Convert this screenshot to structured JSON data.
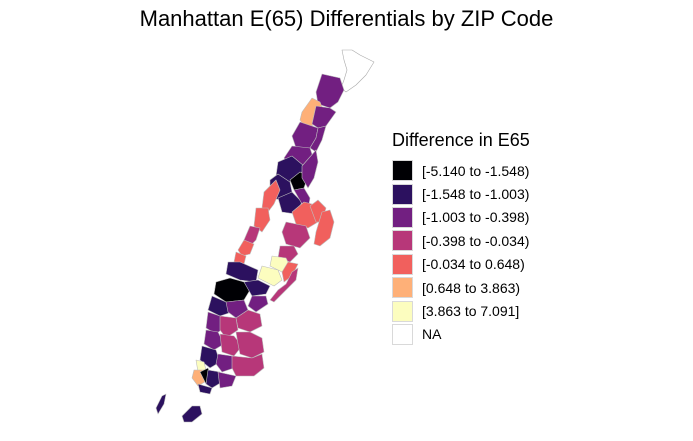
{
  "title": "Manhattan E(65) Differentials by ZIP Code",
  "legend": {
    "title": "Difference in E65",
    "placement": "right",
    "items": [
      {
        "label": "[-5.140 to -1.548)",
        "color": "#000004"
      },
      {
        "label": "[-1.548 to -1.003)",
        "color": "#2c115f"
      },
      {
        "label": "[-1.003 to -0.398)",
        "color": "#721f81"
      },
      {
        "label": "[-0.398 to -0.034)",
        "color": "#b73779"
      },
      {
        "label": "[-0.034 to 0.648)",
        "color": "#f1605d"
      },
      {
        "label": "[0.648 to 3.863)",
        "color": "#feb078"
      },
      {
        "label": "[3.863 to 7.091]",
        "color": "#fcfdbf"
      },
      {
        "label": "NA",
        "color": "#ffffff"
      }
    ]
  }
}
